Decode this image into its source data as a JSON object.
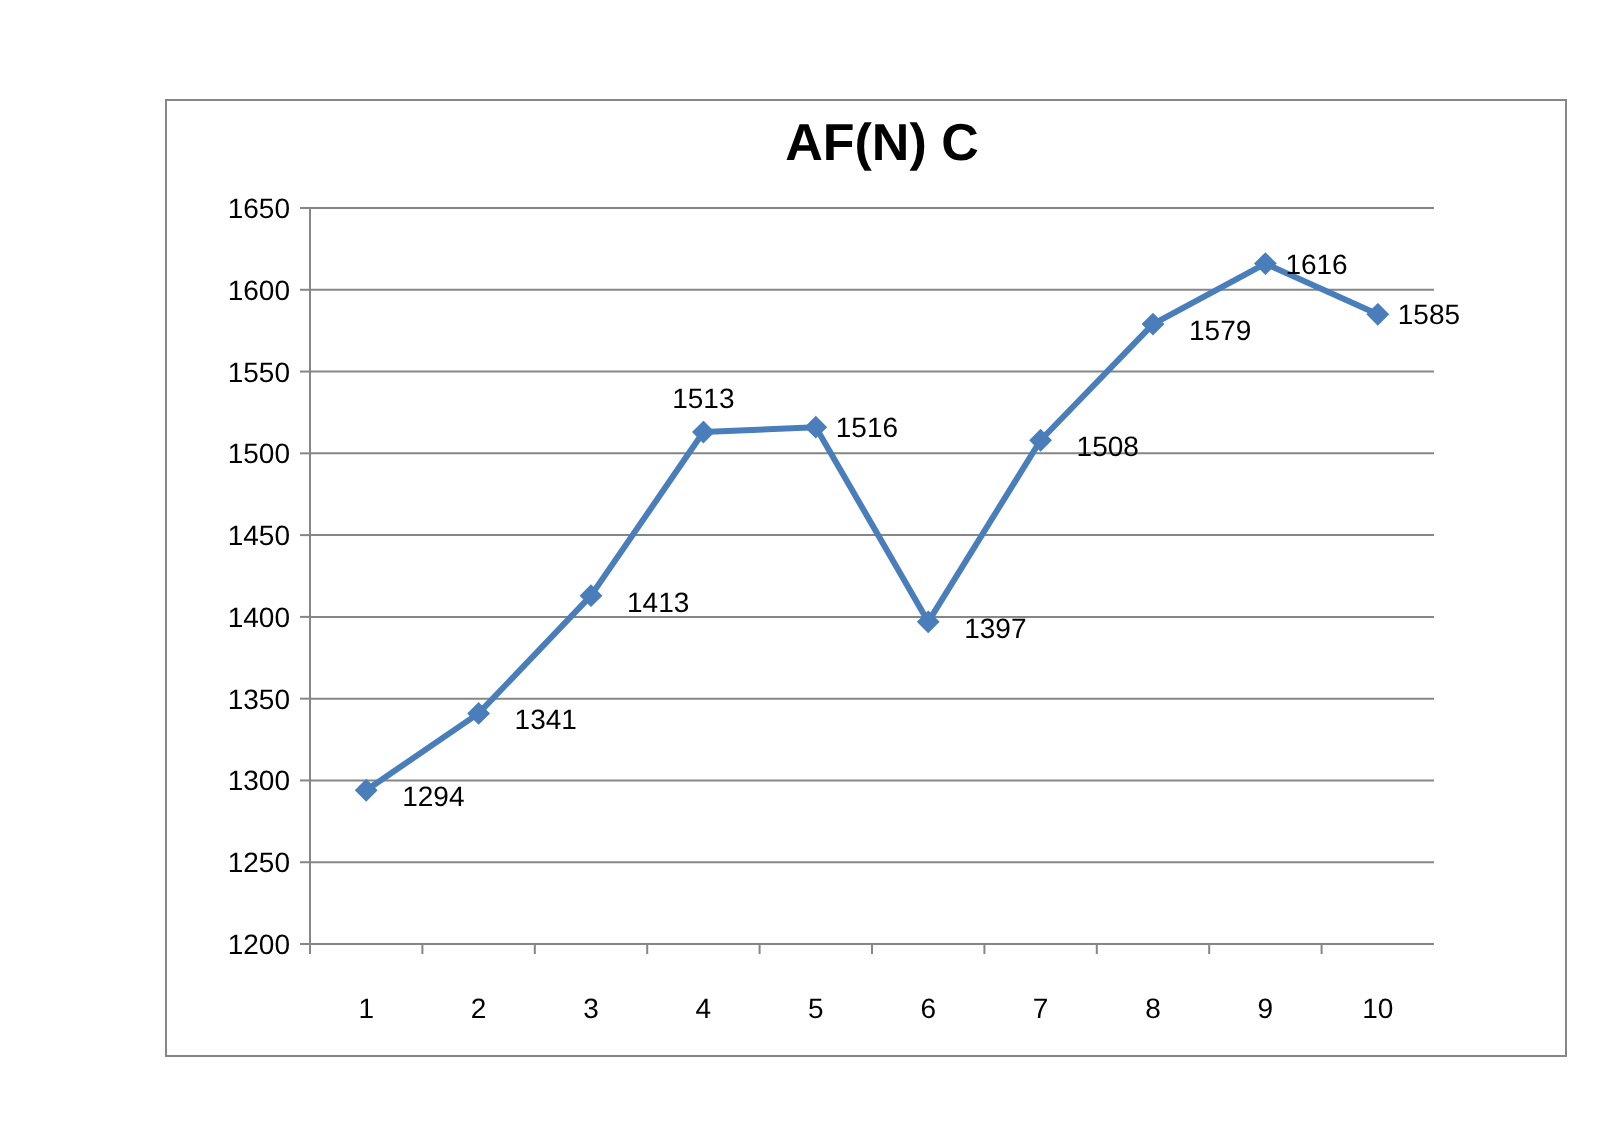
{
  "chart_data": {
    "type": "line",
    "title": "AF(N) C",
    "categories": [
      "1",
      "2",
      "3",
      "4",
      "5",
      "6",
      "7",
      "8",
      "9",
      "10"
    ],
    "series": [
      {
        "color": "#4a7ebb",
        "values": [
          1294,
          1341,
          1413,
          1513,
          1516,
          1397,
          1508,
          1579,
          1616,
          1585
        ]
      }
    ],
    "ylim": [
      1200,
      1650
    ],
    "yticks": [
      1200,
      1250,
      1300,
      1350,
      1400,
      1450,
      1500,
      1550,
      1600,
      1650
    ],
    "grid": "y",
    "marker": "diamond",
    "data_labels": true
  }
}
